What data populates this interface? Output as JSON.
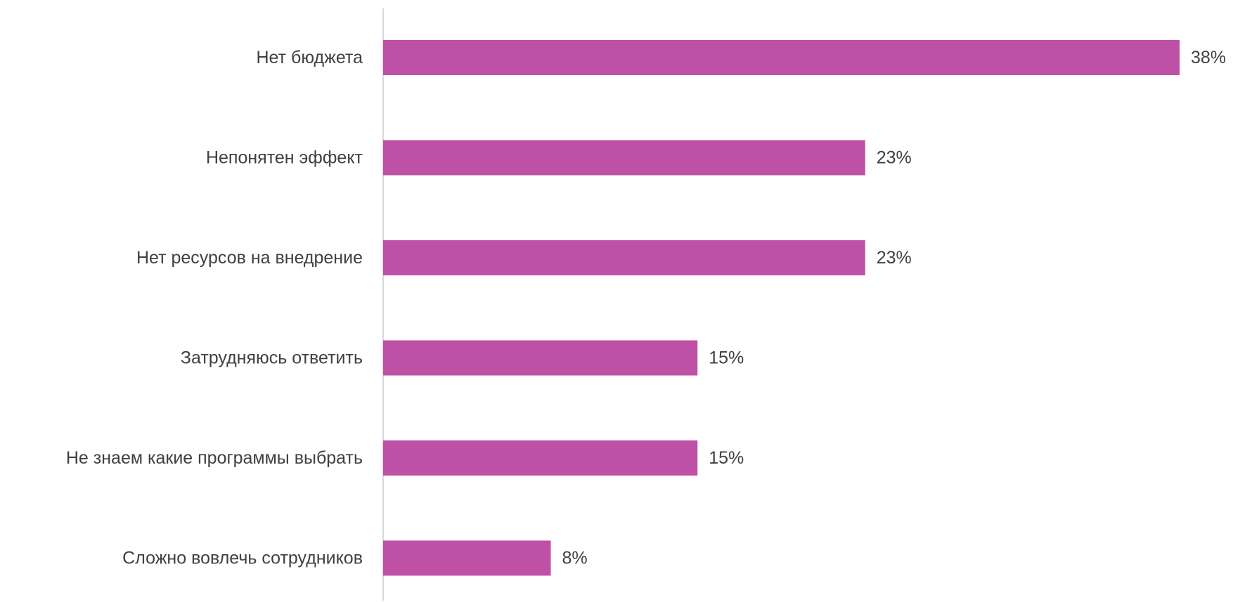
{
  "chart_data": {
    "type": "bar",
    "orientation": "horizontal",
    "categories": [
      "Нет бюджета",
      "Непонятен эффект",
      "Нет ресурсов на внедрение",
      "Затрудняюсь ответить",
      "Не знаем какие программы выбрать",
      "Сложно вовлечь сотрудников"
    ],
    "values": [
      38,
      23,
      23,
      15,
      15,
      8
    ],
    "value_labels": [
      "38%",
      "23%",
      "23%",
      "15%",
      "15%",
      "8%"
    ],
    "unit": "%",
    "xlim": [
      0,
      38
    ],
    "grid": false,
    "legend": "none",
    "colors": {
      "bar": "#BE50A5",
      "axis": "#D9D9D9",
      "text": "#404040"
    }
  }
}
